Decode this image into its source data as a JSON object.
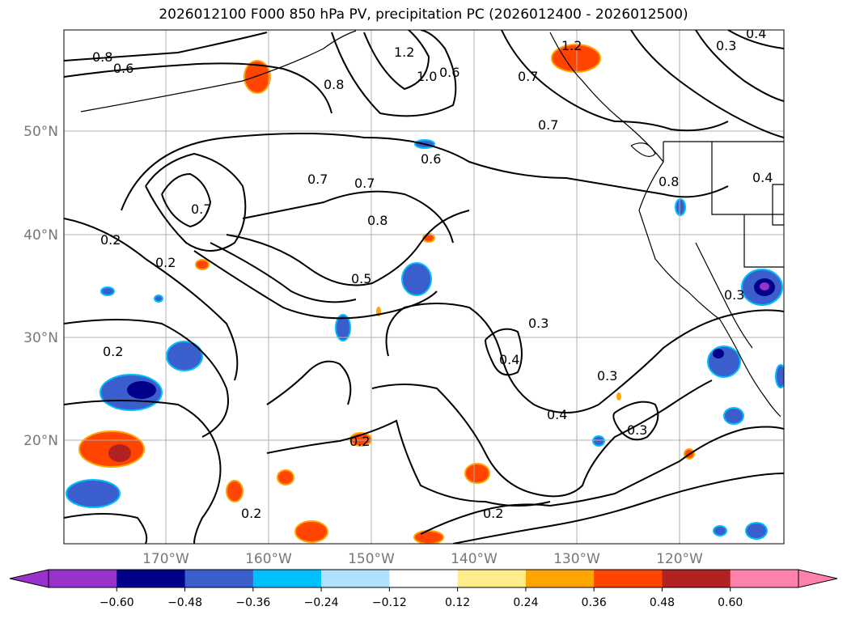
{
  "title": "2026012100 F000 850 hPa PV, precipitation PC (2026012400 - 2026012500)",
  "lat_labels": [
    "50°N",
    "40°N",
    "30°N",
    "20°N"
  ],
  "lon_labels": [
    "170°W",
    "160°W",
    "150°W",
    "140°W",
    "130°W",
    "120°W"
  ],
  "contour_labels": [
    "0.8",
    "0.6",
    "1.2",
    "1.0",
    "0.6",
    "0.7",
    "0.8",
    "1.2",
    "0.3",
    "0.4",
    "0.7",
    "0.6",
    "0.7",
    "0.7",
    "0.8",
    "0.8",
    "0.7",
    "0.2",
    "0.2",
    "0.5",
    "0.3",
    "0.4",
    "0.3",
    "0.4",
    "0.3",
    "0.2",
    "0.2",
    "0.2",
    "0.2",
    "0.4",
    "0.3"
  ],
  "colorbar": {
    "ticks": [
      "−0.60",
      "−0.48",
      "−0.36",
      "−0.24",
      "−0.12",
      "0.12",
      "0.24",
      "0.36",
      "0.48",
      "0.60"
    ],
    "colors": [
      "#9932cc",
      "#00008b",
      "#3a5fcd",
      "#00bfff",
      "#b0e2ff",
      "#ffffff",
      "#ffec8b",
      "#ffa500",
      "#ff4500",
      "#b22222",
      "#ff82ab",
      "#ff82ab"
    ],
    "under_color": "#9932cc",
    "over_color": "#ff82ab"
  }
}
